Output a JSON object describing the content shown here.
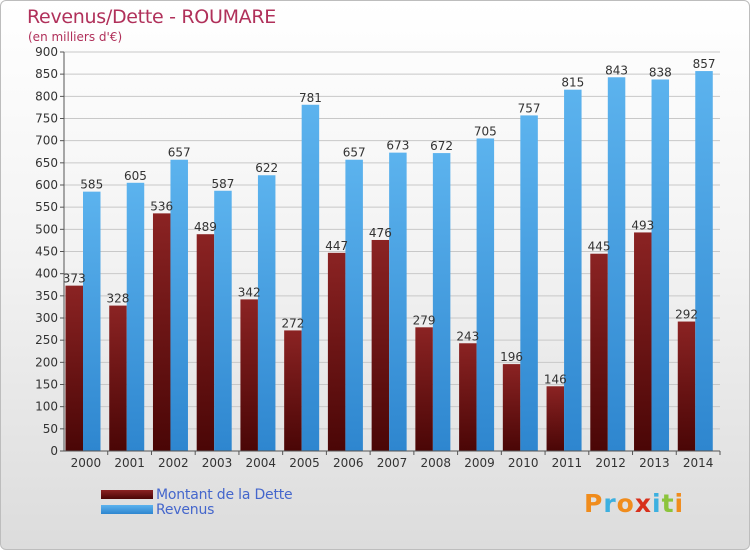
{
  "chart_data": {
    "type": "bar",
    "title": "Revenus/Dette - ROUMARE",
    "subtitle": "(en milliers d'€)",
    "categories": [
      "2000",
      "2001",
      "2002",
      "2003",
      "2004",
      "2005",
      "2006",
      "2007",
      "2008",
      "2009",
      "2010",
      "2011",
      "2012",
      "2013",
      "2014"
    ],
    "series": [
      {
        "name": "Montant de la Dette",
        "color": "#6b1414",
        "values": [
          373,
          328,
          536,
          489,
          342,
          272,
          447,
          476,
          279,
          243,
          196,
          146,
          445,
          493,
          292
        ]
      },
      {
        "name": "Revenus",
        "color": "#4da6e6",
        "values": [
          585,
          605,
          657,
          587,
          622,
          781,
          657,
          673,
          672,
          705,
          757,
          815,
          843,
          838,
          857
        ]
      }
    ],
    "ylim": [
      0,
      900
    ],
    "y_ticks": [
      0,
      50,
      100,
      150,
      200,
      250,
      300,
      350,
      400,
      450,
      500,
      550,
      600,
      650,
      700,
      750,
      800,
      850,
      900
    ],
    "grid": true,
    "legend_position": "bottom-left"
  },
  "logo": {
    "text": "Proxiti",
    "letters": [
      {
        "ch": "P",
        "color": "#f08c1c"
      },
      {
        "ch": "r",
        "color": "#3cb0e0"
      },
      {
        "ch": "o",
        "color": "#f08c1c"
      },
      {
        "ch": "x",
        "color": "#d8301c"
      },
      {
        "ch": "i",
        "color": "#3cb0e0"
      },
      {
        "ch": "t",
        "color": "#8cc43c"
      },
      {
        "ch": "i",
        "color": "#f08c1c"
      }
    ]
  }
}
